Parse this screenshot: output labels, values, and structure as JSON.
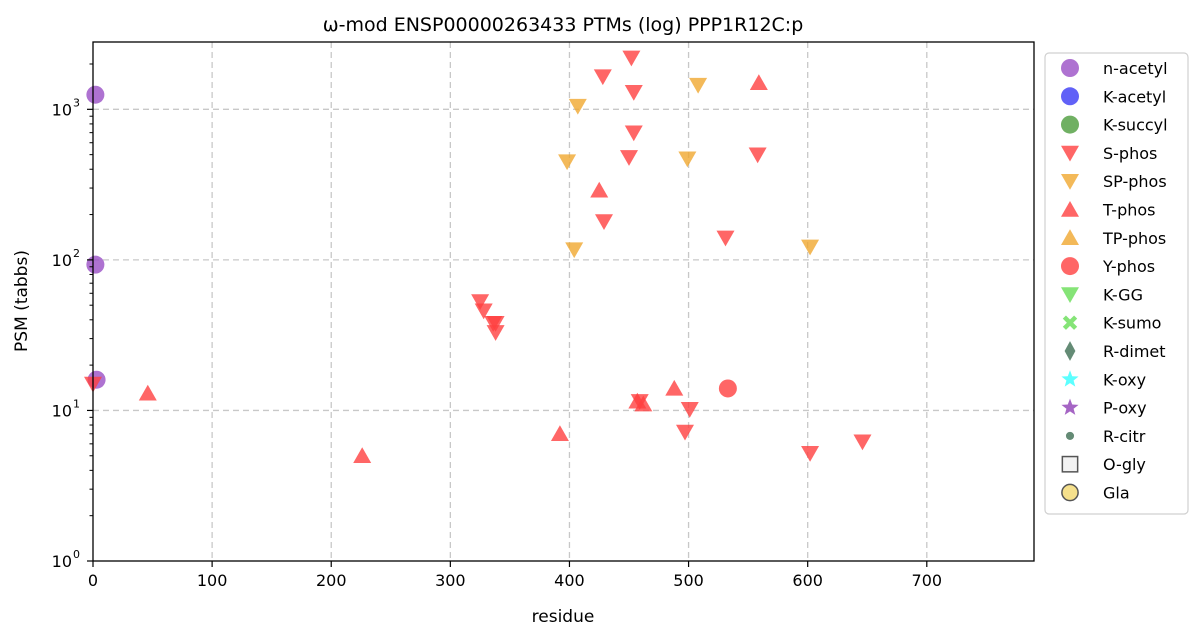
{
  "chart_data": {
    "type": "scatter",
    "title": "ω-mod ENSP00000263433 PTMs (log) PPP1R12C:p",
    "xlabel": "residue",
    "ylabel": "PSM (tabbs)",
    "xlim": [
      0,
      790
    ],
    "ylim": [
      1,
      2800
    ],
    "yscale": "log",
    "grid": true,
    "legend_position": "outside-right",
    "x_ticks": [
      0,
      100,
      200,
      300,
      400,
      500,
      600,
      700
    ],
    "x_tick_labels": [
      "0",
      "100",
      "200",
      "300",
      "400",
      "500",
      "600",
      "700"
    ],
    "y_ticks": [
      1,
      10,
      100,
      1000
    ],
    "y_tick_labels": [
      {
        "base": "10",
        "exp": "0"
      },
      {
        "base": "10",
        "exp": "1"
      },
      {
        "base": "10",
        "exp": "2"
      },
      {
        "base": "10",
        "exp": "3"
      }
    ],
    "series": [
      {
        "name": "n-acetyl",
        "marker": "circle",
        "color": "#9a4fc6",
        "points": [
          [
            2,
            1250
          ],
          [
            2,
            93
          ],
          [
            3,
            16
          ]
        ]
      },
      {
        "name": "K-acetyl",
        "marker": "circle",
        "color": "#3a3af5",
        "points": []
      },
      {
        "name": "K-succyl",
        "marker": "circle",
        "color": "#4c9c3c",
        "points": []
      },
      {
        "name": "S-phos",
        "marker": "triangle-down",
        "color": "#ff4040",
        "points": [
          [
            0,
            15
          ],
          [
            325,
            53
          ],
          [
            328,
            46
          ],
          [
            336,
            38
          ],
          [
            338,
            38
          ],
          [
            338,
            33
          ],
          [
            428,
            1650
          ],
          [
            452,
            2200
          ],
          [
            454,
            1300
          ],
          [
            454,
            700
          ],
          [
            450,
            480
          ],
          [
            429,
            180
          ],
          [
            531,
            140
          ],
          [
            558,
            500
          ],
          [
            459,
            11.5
          ],
          [
            497,
            7.2
          ],
          [
            501,
            10.2
          ],
          [
            602,
            5.2
          ],
          [
            646,
            6.2
          ]
        ]
      },
      {
        "name": "SP-phos",
        "marker": "triangle-down",
        "color": "#f0a830",
        "points": [
          [
            407,
            1050
          ],
          [
            398,
            450
          ],
          [
            404,
            117
          ],
          [
            499,
            470
          ],
          [
            508,
            1450
          ],
          [
            602,
            122
          ]
        ]
      },
      {
        "name": "T-phos",
        "marker": "triangle-up",
        "color": "#ff4040",
        "points": [
          [
            46,
            13
          ],
          [
            226,
            5
          ],
          [
            392,
            7
          ],
          [
            425,
            290
          ],
          [
            457,
            11.5
          ],
          [
            462,
            11
          ],
          [
            488,
            14
          ],
          [
            559,
            1500
          ]
        ]
      },
      {
        "name": "TP-phos",
        "marker": "triangle-up",
        "color": "#f0a830",
        "points": []
      },
      {
        "name": "Y-phos",
        "marker": "circle",
        "color": "#ff4040",
        "points": [
          [
            533,
            14
          ]
        ]
      },
      {
        "name": "K-GG",
        "marker": "triangle-down",
        "color": "#66dd55",
        "points": []
      },
      {
        "name": "K-sumo",
        "marker": "x",
        "color": "#66dd55",
        "points": []
      },
      {
        "name": "R-dimet",
        "marker": "diamond",
        "color": "#3d6e52",
        "points": []
      },
      {
        "name": "K-oxy",
        "marker": "star",
        "color": "#33ffff",
        "points": []
      },
      {
        "name": "P-oxy",
        "marker": "star",
        "color": "#8e3fb5",
        "points": []
      },
      {
        "name": "R-citr",
        "marker": "dot",
        "color": "#3d6e52",
        "points": []
      },
      {
        "name": "O-gly",
        "marker": "square-open",
        "color": "#555555",
        "points": []
      },
      {
        "name": "Gla",
        "marker": "circle-open",
        "color": "#f5e08c",
        "points": []
      }
    ]
  }
}
